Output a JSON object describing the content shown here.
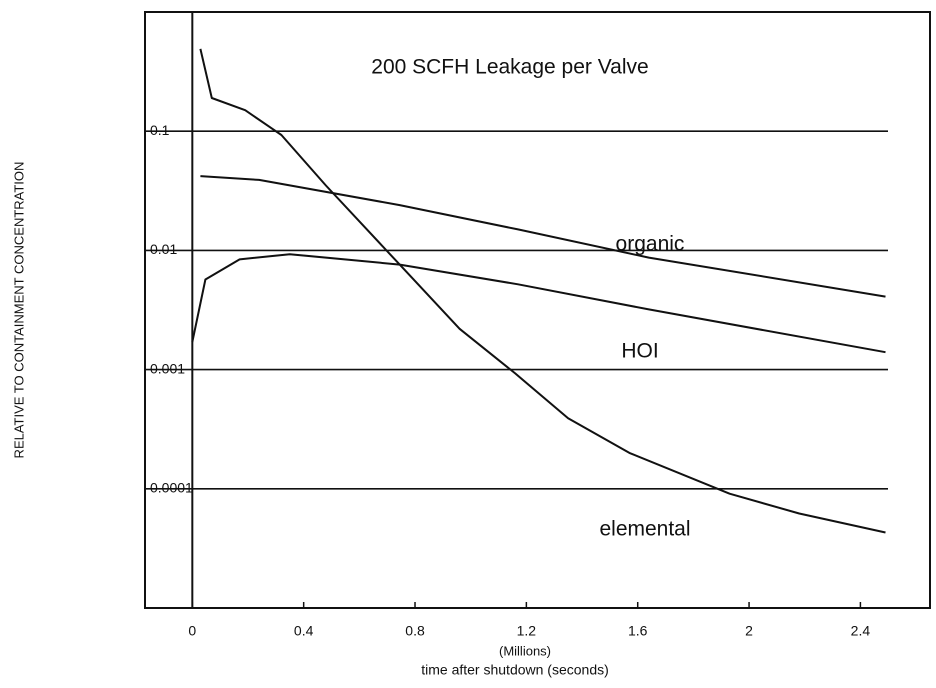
{
  "chart_data": {
    "type": "line",
    "title": "200 SCFH Leakage per Valve",
    "ylabel": "RELATIVE TO CONTAINMENT CONCENTRATION",
    "xlabel": "time after shutdown (seconds)",
    "xunit": "(Millions)",
    "log_y": true,
    "grid": true,
    "xlim": [
      -0.17,
      2.65
    ],
    "ylim": [
      1e-05,
      1
    ],
    "xticks": [
      0,
      0.4,
      0.8,
      1.2,
      1.6,
      2,
      2.4
    ],
    "yticks": [
      0.1,
      0.01,
      0.001,
      0.0001
    ],
    "series": [
      {
        "name": "organic",
        "color": "#111111",
        "x": [
          0.029,
          0.24,
          0.745,
          1.17,
          1.64,
          2.49
        ],
        "values": [
          0.042,
          0.039,
          0.024,
          0.015,
          0.0087,
          0.0041
        ]
      },
      {
        "name": "HOI",
        "color": "#111111",
        "x": [
          0,
          0.047,
          0.17,
          0.35,
          0.745,
          1.17,
          1.64,
          2.49
        ],
        "values": [
          0.0017,
          0.0057,
          0.0084,
          0.0093,
          0.0076,
          0.0052,
          0.0032,
          0.0014
        ]
      },
      {
        "name": "elemental",
        "color": "#111111",
        "x": [
          0.029,
          0.07,
          0.19,
          0.32,
          0.48,
          0.745,
          0.96,
          1.16,
          1.35,
          1.57,
          1.93,
          2.18,
          2.49
        ],
        "values": [
          0.49,
          0.19,
          0.15,
          0.093,
          0.035,
          0.0076,
          0.0022,
          0.00093,
          0.00039,
          0.0002,
          9.1e-05,
          6.2e-05,
          4.3e-05
        ]
      }
    ]
  }
}
